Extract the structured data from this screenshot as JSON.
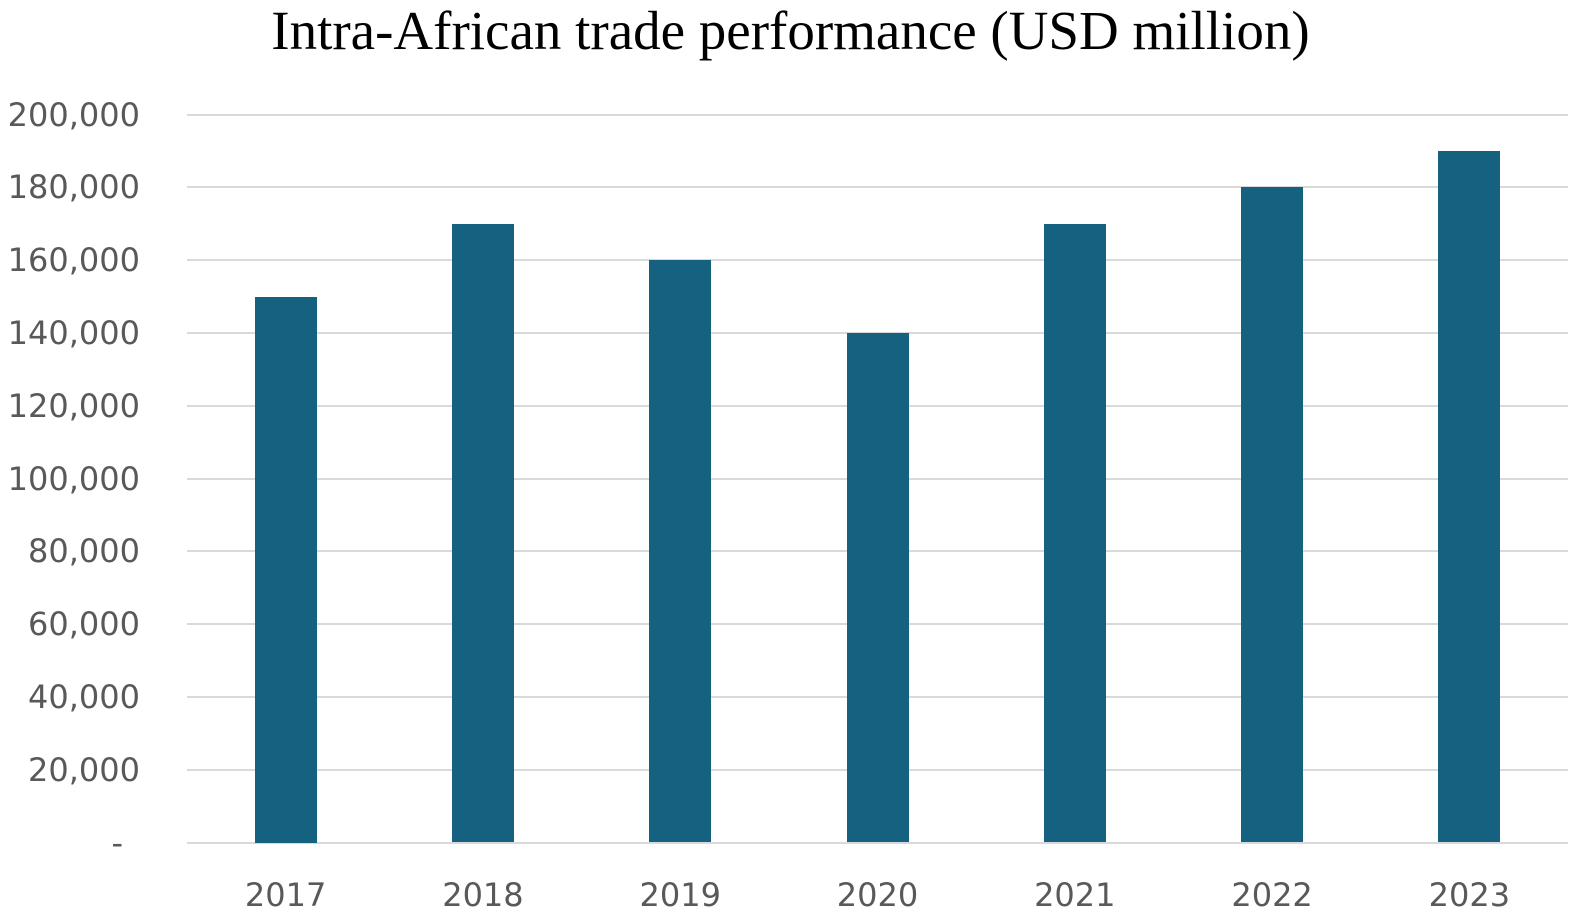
{
  "chart_data": {
    "type": "bar",
    "title": "Intra-African trade performance (USD million)",
    "categories": [
      "2017",
      "2018",
      "2019",
      "2020",
      "2021",
      "2022",
      "2023"
    ],
    "values": [
      150000,
      170000,
      160000,
      140000,
      170000,
      180000,
      190000
    ],
    "xlabel": "",
    "ylabel": "",
    "ylim": [
      0,
      200000
    ],
    "ytick_step": 20000,
    "y_tick_labels": [
      "-",
      "20,000",
      "40,000",
      "60,000",
      "80,000",
      "100,000",
      "120,000",
      "140,000",
      "160,000",
      "180,000",
      "200,000"
    ],
    "grid": true,
    "legend_position": "none",
    "bar_color": "#156180",
    "gridline_color": "#D9D9D9",
    "axis_label_color": "#595959",
    "title_color": "#000000"
  }
}
